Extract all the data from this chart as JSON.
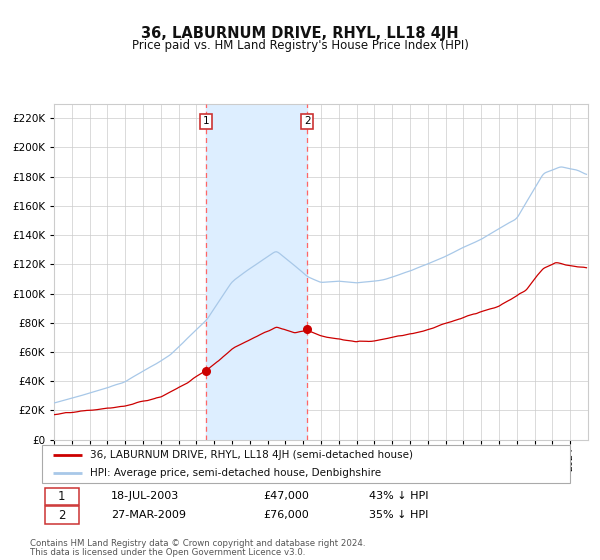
{
  "title": "36, LABURNUM DRIVE, RHYL, LL18 4JH",
  "subtitle": "Price paid vs. HM Land Registry's House Price Index (HPI)",
  "legend_line1": "36, LABURNUM DRIVE, RHYL, LL18 4JH (semi-detached house)",
  "legend_line2": "HPI: Average price, semi-detached house, Denbighshire",
  "transaction1_date": "18-JUL-2003",
  "transaction1_price": 47000,
  "transaction1_label": "43% ↓ HPI",
  "transaction2_date": "27-MAR-2009",
  "transaction2_price": 76000,
  "transaction2_label": "35% ↓ HPI",
  "footer1": "Contains HM Land Registry data © Crown copyright and database right 2024.",
  "footer2": "This data is licensed under the Open Government Licence v3.0.",
  "hpi_color": "#a8c8e8",
  "price_color": "#cc0000",
  "dot_color": "#cc0000",
  "vline_color": "#ff6666",
  "shade_color": "#ddeeff",
  "grid_color": "#cccccc",
  "background_color": "#ffffff",
  "ylim": [
    0,
    230000
  ],
  "yticks": [
    0,
    20000,
    40000,
    60000,
    80000,
    100000,
    120000,
    140000,
    160000,
    180000,
    200000,
    220000
  ],
  "x_start_year": 1995,
  "x_end_year": 2024
}
